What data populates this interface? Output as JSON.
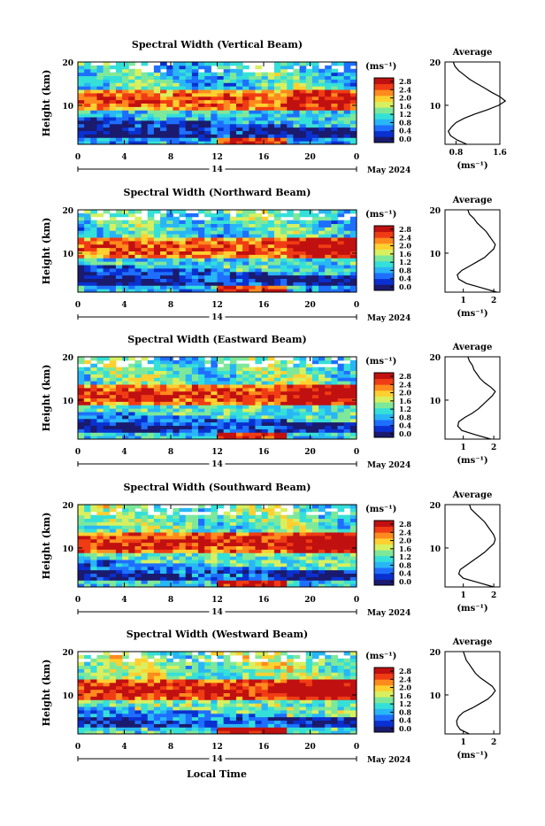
{
  "figure": {
    "xlabel": "Local Time",
    "date_label": "May 2024",
    "day_label": "14",
    "ylabel": "Height (km)",
    "cbar_unit": "(ms⁻¹)",
    "avg_title": "Average",
    "avg_unit": "(ms⁻¹)",
    "x_ticks": [
      "0",
      "4",
      "8",
      "12",
      "16",
      "20",
      "0"
    ],
    "y_ticks": [
      "20",
      "10"
    ],
    "cbar_ticks": [
      "2.8",
      "2.4",
      "2.0",
      "1.6",
      "1.2",
      "0.8",
      "0.4",
      "0.0"
    ],
    "colormap": [
      "#1a1a6e",
      "#0a30d0",
      "#1e6fff",
      "#29b6f6",
      "#35e0d8",
      "#7ee89a",
      "#d8f060",
      "#ffd030",
      "#ff8a1e",
      "#f03c14",
      "#c01010"
    ]
  },
  "chart_data": [
    {
      "type": "heatmap",
      "title": "Spectral Width (Vertical Beam)",
      "x_range": [
        0,
        24
      ],
      "y_range": [
        1,
        20
      ],
      "clim": [
        0.0,
        2.8
      ],
      "avg": {
        "xlim": [
          0.6,
          1.6
        ],
        "ticks": [
          "0.8",
          "1.6"
        ],
        "profile": [
          [
            1,
            1.0
          ],
          [
            2,
            0.82
          ],
          [
            3,
            0.7
          ],
          [
            4,
            0.66
          ],
          [
            5,
            0.72
          ],
          [
            6,
            0.8
          ],
          [
            7,
            0.95
          ],
          [
            8,
            1.15
          ],
          [
            9,
            1.38
          ],
          [
            10,
            1.58
          ],
          [
            11,
            1.7
          ],
          [
            12,
            1.6
          ],
          [
            13,
            1.45
          ],
          [
            14,
            1.32
          ],
          [
            15,
            1.18
          ],
          [
            16,
            1.05
          ],
          [
            17,
            0.95
          ],
          [
            18,
            0.85
          ],
          [
            19,
            0.78
          ],
          [
            20,
            0.75
          ]
        ]
      }
    },
    {
      "type": "heatmap",
      "title": "Spectral Width (Northward Beam)",
      "x_range": [
        0,
        24
      ],
      "y_range": [
        1,
        20
      ],
      "clim": [
        0.0,
        2.8
      ],
      "avg": {
        "xlim": [
          0.4,
          2.2
        ],
        "ticks": [
          "1",
          "2"
        ],
        "profile": [
          [
            1,
            2.1
          ],
          [
            2,
            1.6
          ],
          [
            3,
            1.1
          ],
          [
            4,
            0.85
          ],
          [
            5,
            0.8
          ],
          [
            6,
            0.95
          ],
          [
            7,
            1.2
          ],
          [
            8,
            1.45
          ],
          [
            9,
            1.7
          ],
          [
            10,
            1.85
          ],
          [
            11,
            2.0
          ],
          [
            12,
            2.05
          ],
          [
            13,
            1.95
          ],
          [
            14,
            1.85
          ],
          [
            15,
            1.75
          ],
          [
            16,
            1.6
          ],
          [
            17,
            1.45
          ],
          [
            18,
            1.35
          ],
          [
            19,
            1.2
          ],
          [
            20,
            1.15
          ]
        ]
      }
    },
    {
      "type": "heatmap",
      "title": "Spectral Width (Eastward Beam)",
      "x_range": [
        0,
        24
      ],
      "y_range": [
        1,
        20
      ],
      "clim": [
        0.0,
        2.8
      ],
      "avg": {
        "xlim": [
          0.4,
          2.2
        ],
        "ticks": [
          "1",
          "2"
        ],
        "profile": [
          [
            1,
            1.9
          ],
          [
            2,
            1.4
          ],
          [
            3,
            0.95
          ],
          [
            4,
            0.82
          ],
          [
            5,
            0.85
          ],
          [
            6,
            1.05
          ],
          [
            7,
            1.3
          ],
          [
            8,
            1.5
          ],
          [
            9,
            1.65
          ],
          [
            10,
            1.8
          ],
          [
            11,
            1.95
          ],
          [
            12,
            2.05
          ],
          [
            13,
            1.9
          ],
          [
            14,
            1.7
          ],
          [
            15,
            1.55
          ],
          [
            16,
            1.45
          ],
          [
            17,
            1.35
          ],
          [
            18,
            1.3
          ],
          [
            19,
            1.2
          ],
          [
            20,
            1.15
          ]
        ]
      }
    },
    {
      "type": "heatmap",
      "title": "Spectral Width (Southward Beam)",
      "x_range": [
        0,
        24
      ],
      "y_range": [
        1,
        20
      ],
      "clim": [
        0.0,
        2.8
      ],
      "avg": {
        "xlim": [
          0.4,
          2.2
        ],
        "ticks": [
          "1",
          "2"
        ],
        "profile": [
          [
            1,
            2.0
          ],
          [
            2,
            1.5
          ],
          [
            3,
            1.0
          ],
          [
            4,
            0.85
          ],
          [
            5,
            0.9
          ],
          [
            6,
            1.1
          ],
          [
            7,
            1.3
          ],
          [
            8,
            1.5
          ],
          [
            9,
            1.7
          ],
          [
            10,
            1.85
          ],
          [
            11,
            2.0
          ],
          [
            12,
            2.05
          ],
          [
            13,
            2.0
          ],
          [
            14,
            1.9
          ],
          [
            15,
            1.8
          ],
          [
            16,
            1.7
          ],
          [
            17,
            1.55
          ],
          [
            18,
            1.4
          ],
          [
            19,
            1.25
          ],
          [
            20,
            1.2
          ]
        ]
      }
    },
    {
      "type": "heatmap",
      "title": "Spectral Width (Westward Beam)",
      "x_range": [
        0,
        24
      ],
      "y_range": [
        1,
        20
      ],
      "clim": [
        0.0,
        2.8
      ],
      "avg": {
        "xlim": [
          0.4,
          2.2
        ],
        "ticks": [
          "1",
          "2"
        ],
        "profile": [
          [
            1,
            1.2
          ],
          [
            2,
            0.9
          ],
          [
            3,
            0.8
          ],
          [
            4,
            0.78
          ],
          [
            5,
            0.85
          ],
          [
            6,
            1.0
          ],
          [
            7,
            1.3
          ],
          [
            8,
            1.55
          ],
          [
            9,
            1.8
          ],
          [
            10,
            1.95
          ],
          [
            11,
            2.05
          ],
          [
            12,
            1.95
          ],
          [
            13,
            1.75
          ],
          [
            14,
            1.55
          ],
          [
            15,
            1.4
          ],
          [
            16,
            1.3
          ],
          [
            17,
            1.2
          ],
          [
            18,
            1.1
          ],
          [
            19,
            1.05
          ],
          [
            20,
            1.0
          ]
        ]
      }
    }
  ]
}
